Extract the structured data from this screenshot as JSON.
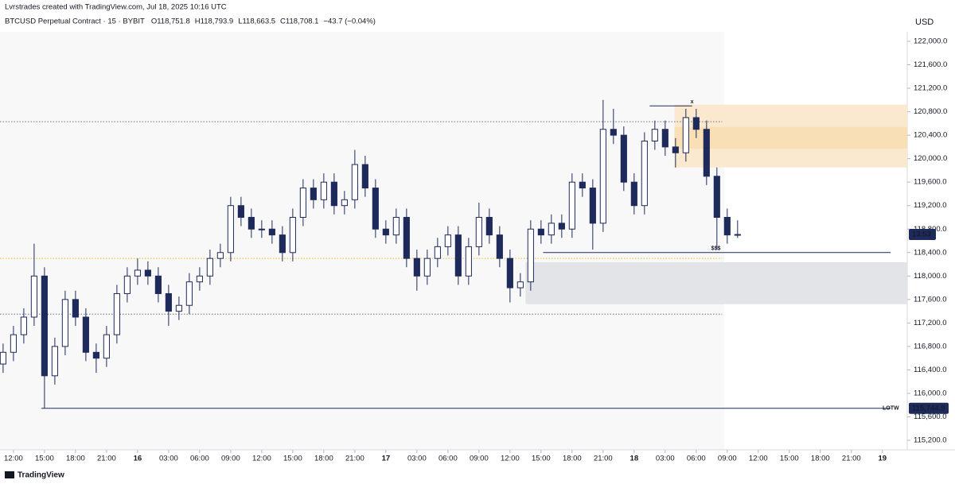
{
  "chart_data": {
    "type": "candlestick",
    "header": "Lvrstrades created with TradingView.com, Jul 18, 2025 10:16 UTC",
    "symbol": "BTCUSD Perpetual Contract · 15 · BYBIT",
    "ohlc_legend": [
      "O118,751.8",
      "H118,793.9",
      "L118,663.5",
      "C118,708.1",
      "−43.7 (−0.04%)"
    ],
    "currency": "USD",
    "countdown": "13:53",
    "watermark": "TradingView",
    "color": "#1e2a5a",
    "x": [
      -1,
      0,
      1,
      2,
      3,
      4,
      5,
      6,
      7,
      8,
      9,
      10,
      11,
      12,
      13,
      14,
      15,
      16,
      17,
      18,
      19,
      20,
      21,
      22,
      23,
      24,
      25,
      26,
      27,
      28,
      29,
      30,
      31,
      32,
      33,
      34,
      35,
      36,
      37,
      38,
      39,
      40,
      41,
      42,
      43,
      44,
      45,
      46,
      47,
      48,
      49,
      50,
      51,
      52,
      53,
      54,
      55,
      56,
      57,
      58,
      59,
      60,
      61,
      62,
      63,
      64,
      65,
      66,
      67,
      68,
      69,
      70
    ],
    "open": [
      116500,
      116700,
      117000,
      117300,
      118000,
      116300,
      116800,
      117600,
      117300,
      116700,
      116600,
      117000,
      117700,
      118000,
      118100,
      118000,
      117700,
      117400,
      117500,
      117900,
      118000,
      118300,
      118400,
      119200,
      119000,
      118800,
      118800,
      118700,
      118400,
      119000,
      119500,
      119300,
      119600,
      119200,
      119300,
      119900,
      119500,
      118800,
      118700,
      119000,
      118300,
      118000,
      118300,
      118500,
      118700,
      118000,
      118500,
      119000,
      118700,
      118300,
      117800,
      117900,
      118800,
      118700,
      118900,
      118800,
      119600,
      119500,
      118900,
      120500,
      120400,
      119600,
      119200,
      120300,
      120500,
      120200,
      120100,
      120700,
      120500,
      119700,
      119000,
      118700
    ],
    "high": [
      116850,
      117150,
      117450,
      118550,
      118150,
      116950,
      117750,
      117750,
      117450,
      116850,
      117150,
      117850,
      118150,
      118300,
      118250,
      118150,
      117850,
      117650,
      118050,
      118150,
      118450,
      118550,
      119350,
      119350,
      119150,
      118950,
      118950,
      118850,
      119150,
      119650,
      119650,
      119750,
      119750,
      119450,
      120150,
      120050,
      119650,
      118950,
      119150,
      119150,
      118450,
      118450,
      118650,
      118850,
      118850,
      118650,
      119250,
      119150,
      118850,
      118450,
      118050,
      118950,
      118950,
      119050,
      119050,
      119750,
      119750,
      119650,
      121000,
      120850,
      120550,
      119750,
      120450,
      120650,
      120650,
      120350,
      120850,
      120850,
      120650,
      119850,
      119150,
      118950
    ],
    "low": [
      116350,
      116550,
      116850,
      117150,
      115744.9,
      116150,
      116650,
      117150,
      116550,
      116350,
      116450,
      116850,
      117550,
      117850,
      117850,
      117550,
      117150,
      117250,
      117350,
      117750,
      117850,
      118150,
      118250,
      118850,
      118650,
      118650,
      118550,
      118250,
      118250,
      118850,
      119150,
      119150,
      119050,
      119050,
      119150,
      119350,
      118650,
      118550,
      118550,
      118150,
      117750,
      117850,
      118150,
      118350,
      117850,
      117850,
      118350,
      118550,
      118150,
      117550,
      117650,
      117750,
      118550,
      118550,
      118650,
      118650,
      119350,
      118450,
      118750,
      120250,
      119450,
      119050,
      119050,
      120150,
      120050,
      119850,
      119950,
      120350,
      119550,
      118450,
      118550,
      118650
    ],
    "close": [
      116700,
      117000,
      117300,
      118000,
      116300,
      116800,
      117600,
      117300,
      116700,
      116600,
      117000,
      117700,
      118000,
      118100,
      118000,
      117700,
      117400,
      117500,
      117900,
      118000,
      118300,
      118400,
      119200,
      119000,
      118800,
      118800,
      118700,
      118400,
      119000,
      119500,
      119300,
      119600,
      119200,
      119300,
      119900,
      119500,
      118800,
      118700,
      119000,
      118300,
      118000,
      118300,
      118500,
      118700,
      118000,
      118500,
      119000,
      118700,
      118300,
      117800,
      117900,
      118800,
      118700,
      118900,
      118800,
      119600,
      119500,
      118900,
      120500,
      120400,
      119600,
      119200,
      120300,
      120500,
      120200,
      120100,
      120700,
      120500,
      119700,
      119000,
      118700,
      118708.1
    ],
    "xlim": [
      -1.3,
      86.4
    ],
    "ylim": [
      115038,
      122704
    ],
    "xticks": [
      {
        "value": 0,
        "label": "12:00"
      },
      {
        "value": 3,
        "label": "15:00"
      },
      {
        "value": 6,
        "label": "18:00"
      },
      {
        "value": 9,
        "label": "21:00"
      },
      {
        "value": 12,
        "label": "16"
      },
      {
        "value": 15,
        "label": "03:00"
      },
      {
        "value": 18,
        "label": "06:00"
      },
      {
        "value": 21,
        "label": "09:00"
      },
      {
        "value": 24,
        "label": "12:00"
      },
      {
        "value": 27,
        "label": "15:00"
      },
      {
        "value": 30,
        "label": "18:00"
      },
      {
        "value": 33,
        "label": "21:00"
      },
      {
        "value": 36,
        "label": "17"
      },
      {
        "value": 39,
        "label": "03:00"
      },
      {
        "value": 42,
        "label": "06:00"
      },
      {
        "value": 45,
        "label": "09:00"
      },
      {
        "value": 48,
        "label": "12:00"
      },
      {
        "value": 51,
        "label": "15:00"
      },
      {
        "value": 54,
        "label": "18:00"
      },
      {
        "value": 57,
        "label": "21:00"
      },
      {
        "value": 60,
        "label": "18"
      },
      {
        "value": 63,
        "label": "03:00"
      },
      {
        "value": 66,
        "label": "06:00"
      },
      {
        "value": 69,
        "label": "09:00"
      },
      {
        "value": 72,
        "label": "12:00"
      },
      {
        "value": 75,
        "label": "15:00"
      },
      {
        "value": 78,
        "label": "18:00"
      },
      {
        "value": 81,
        "label": "21:00"
      },
      {
        "value": 84,
        "label": "19"
      }
    ],
    "yticks": [
      {
        "value": 115200,
        "label": "115,200.0"
      },
      {
        "value": 115600,
        "label": "115,600.0"
      },
      {
        "value": 116000,
        "label": "116,000.0"
      },
      {
        "value": 116400,
        "label": "116,400.0"
      },
      {
        "value": 116800,
        "label": "116,800.0"
      },
      {
        "value": 117200,
        "label": "117,200.0"
      },
      {
        "value": 117600,
        "label": "117,600.0"
      },
      {
        "value": 118000,
        "label": "118,000.0"
      },
      {
        "value": 118400,
        "label": "118,400.0"
      },
      {
        "value": 118800,
        "label": "118,800.0"
      },
      {
        "value": 119200,
        "label": "119,200.0"
      },
      {
        "value": 119600,
        "label": "119,600.0"
      },
      {
        "value": 120000,
        "label": "120,000.0"
      },
      {
        "value": 120400,
        "label": "120,400.0"
      },
      {
        "value": 120800,
        "label": "120,800.0"
      },
      {
        "value": 121200,
        "label": "121,200.0"
      },
      {
        "value": 121600,
        "label": "121,600.0"
      },
      {
        "value": 122000,
        "label": "122,000.0"
      }
    ],
    "zones": [
      {
        "y": [
          119850,
          120920
        ],
        "x": [
          63.9,
          86.4
        ],
        "color": "#fbe9cf"
      },
      {
        "y": [
          120170,
          120540
        ],
        "x": [
          63.9,
          86.4
        ],
        "color": "#f8dfb5"
      },
      {
        "y": [
          117520,
          118235
        ],
        "x": [
          49.5,
          86.4
        ],
        "color": "#e3e4e8"
      }
    ],
    "levels": [
      {
        "y": 120630,
        "x": [
          -1.3,
          68.5
        ],
        "style": "dotted",
        "color": "#6b6f7e"
      },
      {
        "y": 118300,
        "x": [
          -1.3,
          68.5
        ],
        "style": "dotted",
        "color": "#f0b429"
      },
      {
        "y": 117350,
        "x": [
          -1.3,
          68.5
        ],
        "style": "dotted",
        "color": "#6b6f7e"
      },
      {
        "y": 118400,
        "x": [
          51.2,
          84.8
        ],
        "style": "solid",
        "color": "#1e2a5a",
        "label": "$$$",
        "label_x": 67.9
      },
      {
        "y": 115744.9,
        "x": [
          2.7,
          84.8
        ],
        "style": "solid",
        "color": "#1e2a5a",
        "label": "LOTW",
        "label_x": 85.6,
        "price_label": "115,744.9"
      },
      {
        "y": 120900,
        "x": [
          61.5,
          65.6
        ],
        "style": "solid",
        "color": "#1e2a5a",
        "label": "x",
        "label_x": 65.6
      }
    ]
  }
}
